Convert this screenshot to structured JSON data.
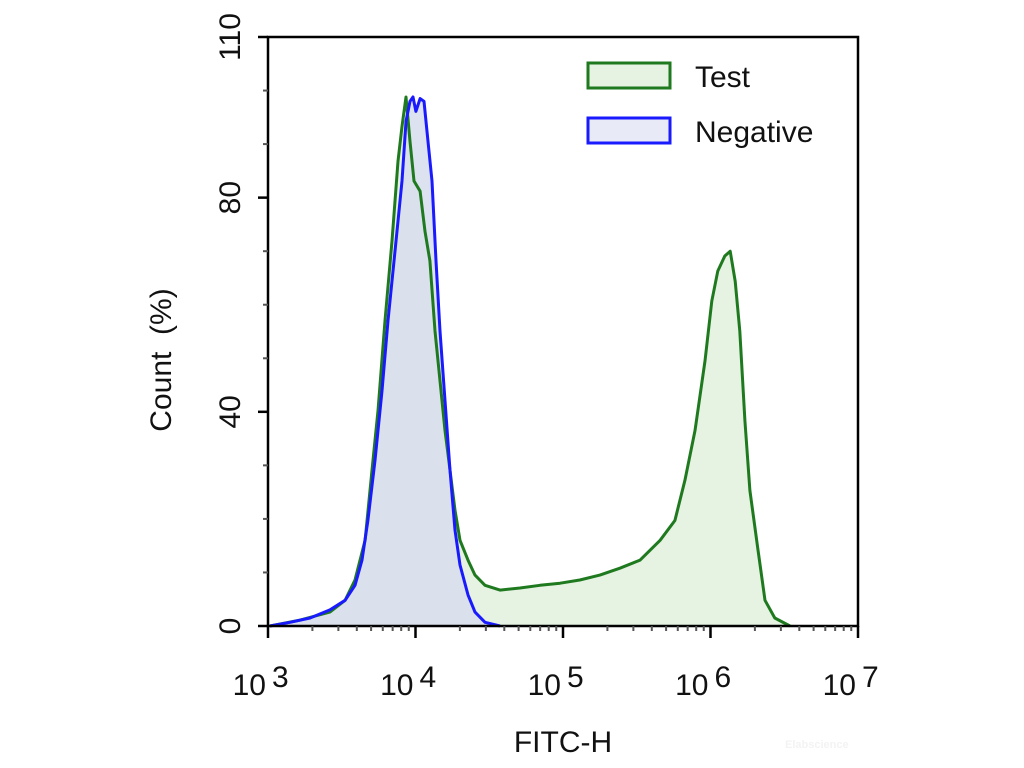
{
  "chart_data": {
    "type": "area",
    "title": "",
    "xlabel": "FITC-H",
    "ylabel": "Count  (%)",
    "x_scale": "log",
    "xlim": [
      1000,
      10000000
    ],
    "ylim": [
      0,
      110
    ],
    "x_ticks": [
      {
        "base": "10",
        "exp": "3",
        "value": 1000
      },
      {
        "base": "10",
        "exp": "4",
        "value": 10000
      },
      {
        "base": "10",
        "exp": "5",
        "value": 100000
      },
      {
        "base": "10",
        "exp": "6",
        "value": 1000000
      },
      {
        "base": "10",
        "exp": "7",
        "value": 10000000
      }
    ],
    "y_ticks": [
      0,
      40,
      80,
      110
    ],
    "y_minor_step": 10,
    "grid": false,
    "legend_position": "top-right",
    "series": [
      {
        "name": "Test",
        "line_color": "#1f7a1f",
        "fill_color": "#e6f2e2",
        "points": [
          [
            1030,
            0
          ],
          [
            1650,
            1.1
          ],
          [
            2630,
            2.6
          ],
          [
            3330,
            4.8
          ],
          [
            3890,
            8.6
          ],
          [
            4550,
            16.0
          ],
          [
            5070,
            29.1
          ],
          [
            5570,
            40.2
          ],
          [
            6210,
            57.0
          ],
          [
            6930,
            71.9
          ],
          [
            7610,
            86.8
          ],
          [
            8100,
            93.3
          ],
          [
            8620,
            98.8
          ],
          [
            9180,
            90.5
          ],
          [
            9770,
            83.1
          ],
          [
            10740,
            81.2
          ],
          [
            11590,
            73.7
          ],
          [
            12530,
            68.2
          ],
          [
            13560,
            55.1
          ],
          [
            14660,
            45.8
          ],
          [
            15850,
            36.5
          ],
          [
            17140,
            29.1
          ],
          [
            18530,
            21.6
          ],
          [
            20040,
            16.0
          ],
          [
            22700,
            12.3
          ],
          [
            25300,
            9.5
          ],
          [
            29600,
            7.6
          ],
          [
            37400,
            6.7
          ],
          [
            51100,
            7.1
          ],
          [
            69800,
            7.6
          ],
          [
            95500,
            8.0
          ],
          [
            130000,
            8.6
          ],
          [
            178000,
            9.5
          ],
          [
            243000,
            10.8
          ],
          [
            333000,
            12.3
          ],
          [
            455000,
            16.0
          ],
          [
            574000,
            19.7
          ],
          [
            671000,
            27.2
          ],
          [
            785000,
            36.5
          ],
          [
            918000,
            49.5
          ],
          [
            1020000,
            60.7
          ],
          [
            1120000,
            66.3
          ],
          [
            1250000,
            69.1
          ],
          [
            1360000,
            70.0
          ],
          [
            1470000,
            64.4
          ],
          [
            1580000,
            55.1
          ],
          [
            1710000,
            38.4
          ],
          [
            1850000,
            25.3
          ],
          [
            2100000,
            14.2
          ],
          [
            2340000,
            4.8
          ],
          [
            2730000,
            1.5
          ],
          [
            3460000,
            0
          ]
        ]
      },
      {
        "name": "Negative",
        "line_color": "#1a1aff",
        "fill_color": "#d8dfee",
        "points": [
          [
            1030,
            0
          ],
          [
            1410,
            0.7
          ],
          [
            1930,
            1.5
          ],
          [
            2630,
            3.0
          ],
          [
            3330,
            4.8
          ],
          [
            3890,
            7.6
          ],
          [
            4340,
            12.3
          ],
          [
            4760,
            19.7
          ],
          [
            5310,
            30.9
          ],
          [
            5930,
            43.9
          ],
          [
            6510,
            57.0
          ],
          [
            7260,
            70.0
          ],
          [
            8100,
            83.1
          ],
          [
            8620,
            94.2
          ],
          [
            9180,
            98.0
          ],
          [
            9610,
            98.8
          ],
          [
            10070,
            96.1
          ],
          [
            10740,
            98.5
          ],
          [
            11420,
            98.0
          ],
          [
            12160,
            90.5
          ],
          [
            12940,
            83.1
          ],
          [
            13770,
            68.2
          ],
          [
            14660,
            55.1
          ],
          [
            15850,
            42.1
          ],
          [
            17140,
            29.1
          ],
          [
            18530,
            17.9
          ],
          [
            20040,
            11.4
          ],
          [
            22700,
            5.8
          ],
          [
            25300,
            2.6
          ],
          [
            29600,
            0.7
          ],
          [
            37400,
            0
          ]
        ]
      }
    ]
  },
  "watermark": "Elabscience"
}
